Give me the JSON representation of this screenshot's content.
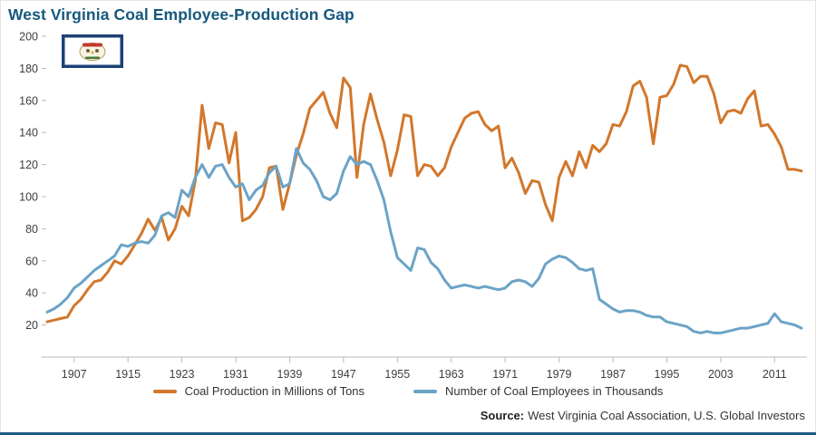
{
  "title": "West Virginia Coal Employee-Production Gap",
  "source": {
    "label": "Source:",
    "text": "West Virginia Coal Association, U.S. Global Investors"
  },
  "colors": {
    "title": "#15587D",
    "production_line": "#D2772B",
    "employees_line": "#6BA3C6",
    "axis": "#B9B9B9",
    "footer_bar": "#1B5A86"
  },
  "chart_data": {
    "type": "line",
    "title": "West Virginia Coal Employee-Production Gap",
    "xlabel": "",
    "ylabel": "",
    "ylim": [
      0,
      200
    ],
    "yticks": [
      20,
      40,
      60,
      80,
      100,
      120,
      140,
      160,
      180,
      200
    ],
    "xticks": [
      1907,
      1915,
      1923,
      1931,
      1939,
      1947,
      1955,
      1963,
      1971,
      1979,
      1987,
      1995,
      2003,
      2011
    ],
    "grid": false,
    "legend_position": "bottom",
    "x": [
      1903,
      1904,
      1905,
      1906,
      1907,
      1908,
      1909,
      1910,
      1911,
      1912,
      1913,
      1914,
      1915,
      1916,
      1917,
      1918,
      1919,
      1920,
      1921,
      1922,
      1923,
      1924,
      1925,
      1926,
      1927,
      1928,
      1929,
      1930,
      1931,
      1932,
      1933,
      1934,
      1935,
      1936,
      1937,
      1938,
      1939,
      1940,
      1941,
      1942,
      1943,
      1944,
      1945,
      1946,
      1947,
      1948,
      1949,
      1950,
      1951,
      1952,
      1953,
      1954,
      1955,
      1956,
      1957,
      1958,
      1959,
      1960,
      1961,
      1962,
      1963,
      1964,
      1965,
      1966,
      1967,
      1968,
      1969,
      1970,
      1971,
      1972,
      1973,
      1974,
      1975,
      1976,
      1977,
      1978,
      1979,
      1980,
      1981,
      1982,
      1983,
      1984,
      1985,
      1986,
      1987,
      1988,
      1989,
      1990,
      1991,
      1992,
      1993,
      1994,
      1995,
      1996,
      1997,
      1998,
      1999,
      2000,
      2001,
      2002,
      2003,
      2004,
      2005,
      2006,
      2007,
      2008,
      2009,
      2010,
      2011,
      2012,
      2013,
      2014,
      2015
    ],
    "series": [
      {
        "name": "Coal Production in Millions of Tons",
        "color": "#D2772B",
        "values": [
          22,
          23,
          24,
          25,
          32,
          36,
          42,
          47,
          48,
          53,
          60,
          58,
          63,
          70,
          77,
          86,
          79,
          87,
          73,
          80,
          94,
          88,
          110,
          157,
          130,
          146,
          145,
          121,
          140,
          85,
          87,
          92,
          100,
          118,
          119,
          92,
          108,
          126,
          139,
          155,
          160,
          165,
          152,
          143,
          174,
          168,
          112,
          145,
          164,
          148,
          134,
          113,
          129,
          151,
          150,
          113,
          120,
          119,
          113,
          118,
          131,
          140,
          149,
          152,
          153,
          145,
          141,
          144,
          118,
          124,
          115,
          102,
          110,
          109,
          95,
          85,
          112,
          122,
          113,
          128,
          118,
          132,
          128,
          133,
          145,
          144,
          153,
          169,
          172,
          162,
          133,
          162,
          163,
          170,
          182,
          181,
          171,
          175,
          175,
          164,
          146,
          153,
          154,
          152,
          161,
          166,
          144,
          145,
          139,
          131,
          117,
          117,
          116
        ]
      },
      {
        "name": "Number of Coal Employees in Thousands",
        "color": "#6BA3C6",
        "values": [
          28,
          30,
          33,
          37,
          43,
          46,
          50,
          54,
          57,
          60,
          63,
          70,
          69,
          71,
          72,
          71,
          76,
          88,
          90,
          87,
          104,
          100,
          112,
          120,
          112,
          119,
          120,
          112,
          106,
          108,
          98,
          104,
          107,
          115,
          119,
          106,
          108,
          130,
          121,
          117,
          110,
          100,
          98,
          102,
          116,
          125,
          120,
          122,
          120,
          110,
          98,
          78,
          62,
          58,
          54,
          68,
          67,
          59,
          55,
          48,
          43,
          44,
          45,
          44,
          43,
          44,
          43,
          42,
          43,
          47,
          48,
          47,
          44,
          49,
          58,
          61,
          63,
          62,
          59,
          55,
          54,
          55,
          36,
          33,
          30,
          28,
          29,
          29,
          28,
          26,
          25,
          25,
          22,
          21,
          20,
          19,
          16,
          15,
          16,
          15,
          15,
          16,
          17,
          18,
          18,
          19,
          20,
          21,
          27,
          22,
          21,
          20,
          18
        ]
      }
    ]
  }
}
